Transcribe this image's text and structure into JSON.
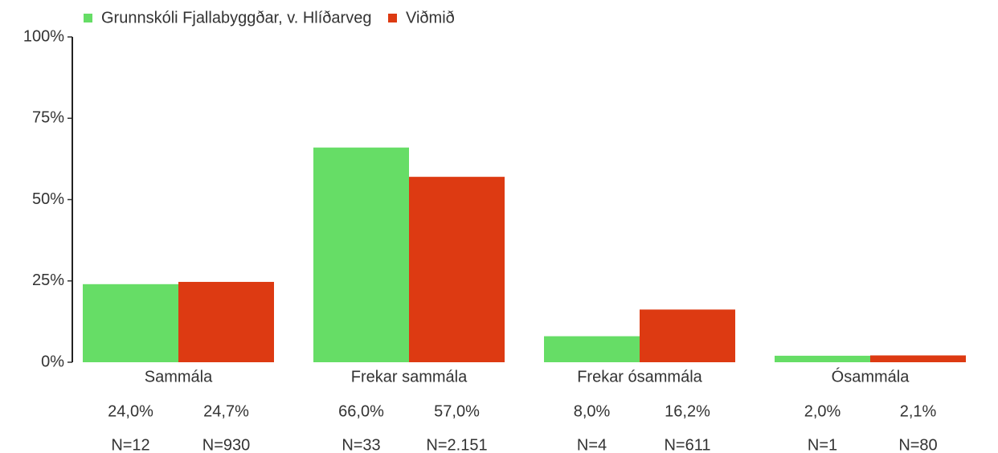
{
  "chart_data": {
    "type": "bar",
    "categories": [
      "Sammála",
      "Frekar sammála",
      "Frekar ósammála",
      "Ósammála"
    ],
    "series": [
      {
        "name": "Grunnskóli Fjallabyggðar, v. Hlíðarveg",
        "color": "#66dd66",
        "values": [
          24.0,
          66.0,
          8.0,
          2.0
        ],
        "value_labels": [
          "24,0%",
          "66,0%",
          "8,0%",
          "2,0%"
        ],
        "n_labels": [
          "N=12",
          "N=33",
          "N=4",
          "N=1"
        ]
      },
      {
        "name": "Viðmið",
        "color": "#dd3a12",
        "values": [
          24.7,
          57.0,
          16.2,
          2.1
        ],
        "value_labels": [
          "24,7%",
          "57,0%",
          "16,2%",
          "2,1%"
        ],
        "n_labels": [
          "N=930",
          "N=2.151",
          "N=611",
          "N=80"
        ]
      }
    ],
    "ylim": [
      0,
      100
    ],
    "yticks": [
      {
        "value": 0,
        "label": "0%"
      },
      {
        "value": 25,
        "label": "25%"
      },
      {
        "value": 50,
        "label": "50%"
      },
      {
        "value": 75,
        "label": "75%"
      },
      {
        "value": 100,
        "label": "100%"
      }
    ],
    "legend": "top"
  }
}
